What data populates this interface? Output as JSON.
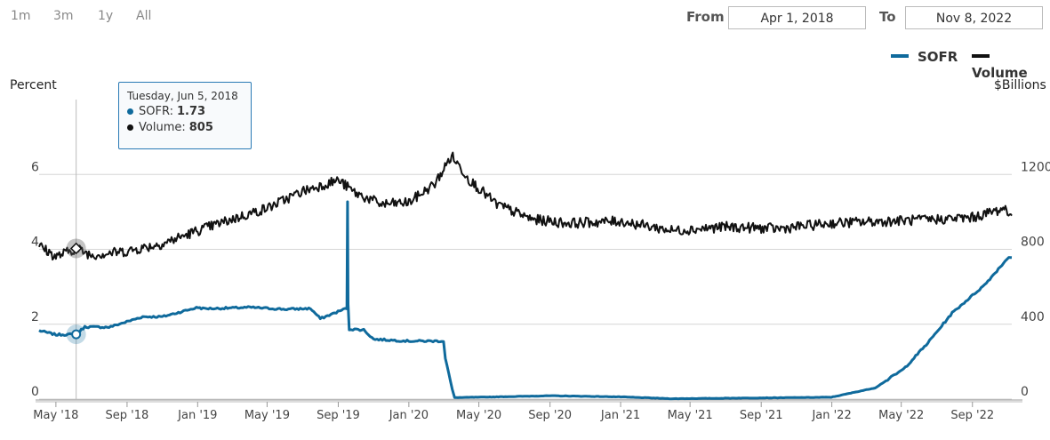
{
  "range_buttons": [
    "1m",
    "3m",
    "1y",
    "All"
  ],
  "date_range": {
    "from_label": "From",
    "from_value": "Apr 1, 2018",
    "to_label": "To",
    "to_value": "Nov 8, 2022"
  },
  "legend": [
    {
      "name": "SOFR",
      "color": "#0f6a9c"
    },
    {
      "name": "Volume",
      "color": "#111111"
    }
  ],
  "tooltip": {
    "date": "Tuesday, Jun 5, 2018",
    "rows": [
      {
        "label": "SOFR:",
        "value": "1.73",
        "color": "#0f6a9c"
      },
      {
        "label": "Volume:",
        "value": "805",
        "color": "#111111"
      }
    ]
  },
  "chart_data": {
    "type": "line",
    "ylabel": "Percent",
    "ylabel_right": "$Billions",
    "y_ticks": [
      "0",
      "2",
      "4",
      "6"
    ],
    "y_ticks_right": [
      "0",
      "400",
      "800",
      "1200"
    ],
    "ylim": [
      0,
      8
    ],
    "ylim_right": [
      0,
      1600
    ],
    "x_range": [
      "2018-04-02",
      "2022-11-08"
    ],
    "x_ticks": [
      "May '18",
      "Sep '18",
      "Jan '19",
      "May '19",
      "Sep '19",
      "Jan '20",
      "May '20",
      "Sep '20",
      "Jan '21",
      "May '21",
      "Sep '21",
      "Jan '22",
      "May '22",
      "Sep '22"
    ],
    "x_tick_dates": [
      "2018-05-01",
      "2018-09-01",
      "2019-01-01",
      "2019-05-01",
      "2019-09-01",
      "2020-01-01",
      "2020-05-01",
      "2020-09-01",
      "2021-01-01",
      "2021-05-01",
      "2021-09-01",
      "2022-01-01",
      "2022-05-01",
      "2022-09-01"
    ],
    "grid": true,
    "legend_position": "top-right",
    "highlight_date": "2018-06-05",
    "series": [
      {
        "name": "SOFR",
        "axis": "left",
        "color": "#0f6a9c",
        "points": [
          [
            "2018-04-02",
            1.83
          ],
          [
            "2018-05-01",
            1.72
          ],
          [
            "2018-06-05",
            1.73
          ],
          [
            "2018-06-20",
            1.93
          ],
          [
            "2018-08-01",
            1.92
          ],
          [
            "2018-09-28",
            2.2
          ],
          [
            "2018-11-01",
            2.2
          ],
          [
            "2018-12-20",
            2.4
          ],
          [
            "2019-01-02",
            2.45
          ],
          [
            "2019-01-10",
            2.42
          ],
          [
            "2019-02-01",
            2.42
          ],
          [
            "2019-04-01",
            2.45
          ],
          [
            "2019-06-01",
            2.4
          ],
          [
            "2019-07-15",
            2.42
          ],
          [
            "2019-08-01",
            2.15
          ],
          [
            "2019-09-16",
            2.43
          ],
          [
            "2019-09-17",
            5.25
          ],
          [
            "2019-09-18",
            2.55
          ],
          [
            "2019-09-20",
            1.87
          ],
          [
            "2019-10-15",
            1.85
          ],
          [
            "2019-11-01",
            1.6
          ],
          [
            "2020-01-01",
            1.55
          ],
          [
            "2020-03-01",
            1.55
          ],
          [
            "2020-03-04",
            1.1
          ],
          [
            "2020-03-16",
            0.26
          ],
          [
            "2020-03-20",
            0.04
          ],
          [
            "2020-06-01",
            0.06
          ],
          [
            "2020-09-01",
            0.09
          ],
          [
            "2021-01-01",
            0.06
          ],
          [
            "2021-04-01",
            0.01
          ],
          [
            "2021-12-31",
            0.05
          ],
          [
            "2022-03-17",
            0.3
          ],
          [
            "2022-05-05",
            0.8
          ],
          [
            "2022-06-16",
            1.5
          ],
          [
            "2022-07-28",
            2.3
          ],
          [
            "2022-09-22",
            3.05
          ],
          [
            "2022-11-03",
            3.8
          ],
          [
            "2022-11-08",
            3.78
          ]
        ]
      },
      {
        "name": "Volume",
        "axis": "right",
        "color": "#111111",
        "points": [
          [
            "2018-04-02",
            820
          ],
          [
            "2018-05-01",
            760
          ],
          [
            "2018-06-05",
            805
          ],
          [
            "2018-07-01",
            770
          ],
          [
            "2018-09-01",
            790
          ],
          [
            "2018-11-01",
            830
          ],
          [
            "2019-01-01",
            900
          ],
          [
            "2019-03-01",
            960
          ],
          [
            "2019-05-01",
            1020
          ],
          [
            "2019-07-01",
            1110
          ],
          [
            "2019-09-01",
            1170
          ],
          [
            "2019-10-01",
            1100
          ],
          [
            "2019-11-15",
            1040
          ],
          [
            "2020-01-01",
            1050
          ],
          [
            "2020-02-15",
            1150
          ],
          [
            "2020-03-15",
            1300
          ],
          [
            "2020-04-15",
            1170
          ],
          [
            "2020-06-01",
            1040
          ],
          [
            "2020-08-01",
            960
          ],
          [
            "2020-10-01",
            940
          ],
          [
            "2021-01-01",
            950
          ],
          [
            "2021-04-01",
            900
          ],
          [
            "2021-07-01",
            920
          ],
          [
            "2021-10-01",
            910
          ],
          [
            "2022-01-01",
            940
          ],
          [
            "2022-04-01",
            950
          ],
          [
            "2022-07-01",
            960
          ],
          [
            "2022-09-01",
            970
          ],
          [
            "2022-10-28",
            1020
          ],
          [
            "2022-11-08",
            980
          ]
        ]
      }
    ]
  }
}
